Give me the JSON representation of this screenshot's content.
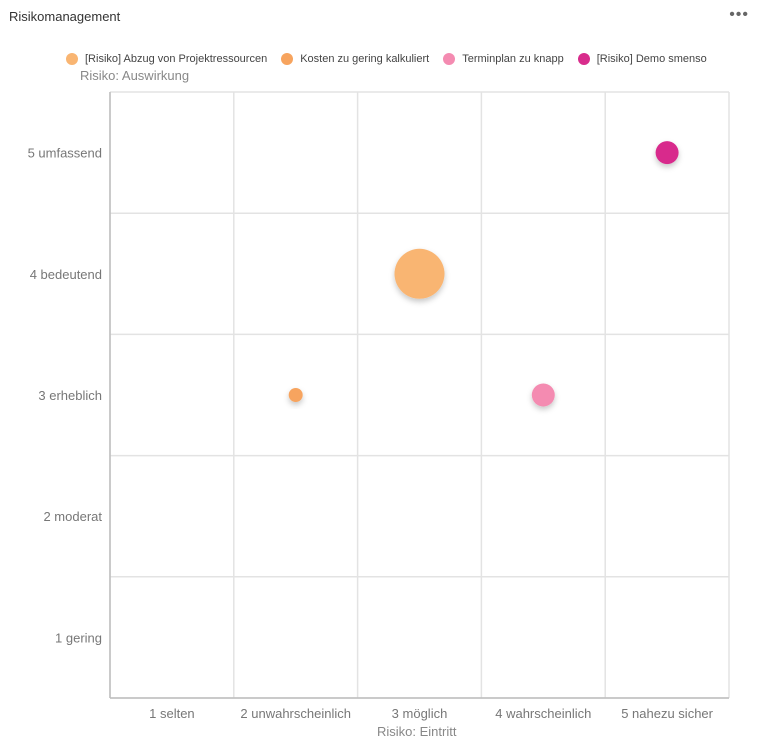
{
  "header": {
    "title": "Risikomanagement",
    "menu_icon": "more-horizontal-icon",
    "menu_label": "•••"
  },
  "chart_data": {
    "type": "scatter",
    "xlabel": "Risiko: Eintritt",
    "ylabel": "Risiko: Auswirkung",
    "x_categories": [
      "1 selten",
      "2 unwahrscheinlich",
      "3 möglich",
      "4 wahrscheinlich",
      "5 nahezu sicher"
    ],
    "y_categories": [
      "1 gering",
      "2 moderat",
      "3 erheblich",
      "4 bedeutend",
      "5 umfassend"
    ],
    "xlim": [
      0.5,
      5.5
    ],
    "ylim": [
      0.5,
      5.5
    ],
    "grid": true,
    "legend_position": "top",
    "series": [
      {
        "name": "[Risiko] Abzug von Projektressourcen",
        "color": "#f9b572",
        "points": [
          {
            "x": 3,
            "y": 4,
            "size": 3
          }
        ]
      },
      {
        "name": "Kosten zu gering kalkuliert",
        "color": "#f7a45e",
        "points": [
          {
            "x": 2,
            "y": 3,
            "size": 1
          }
        ]
      },
      {
        "name": "Terminplan zu knapp",
        "color": "#f48bb1",
        "points": [
          {
            "x": 4,
            "y": 3,
            "size": 1.5
          }
        ]
      },
      {
        "name": "[Risiko] Demo smenso",
        "color": "#d82c8c",
        "points": [
          {
            "x": 5,
            "y": 5,
            "size": 1.5
          }
        ]
      }
    ]
  }
}
